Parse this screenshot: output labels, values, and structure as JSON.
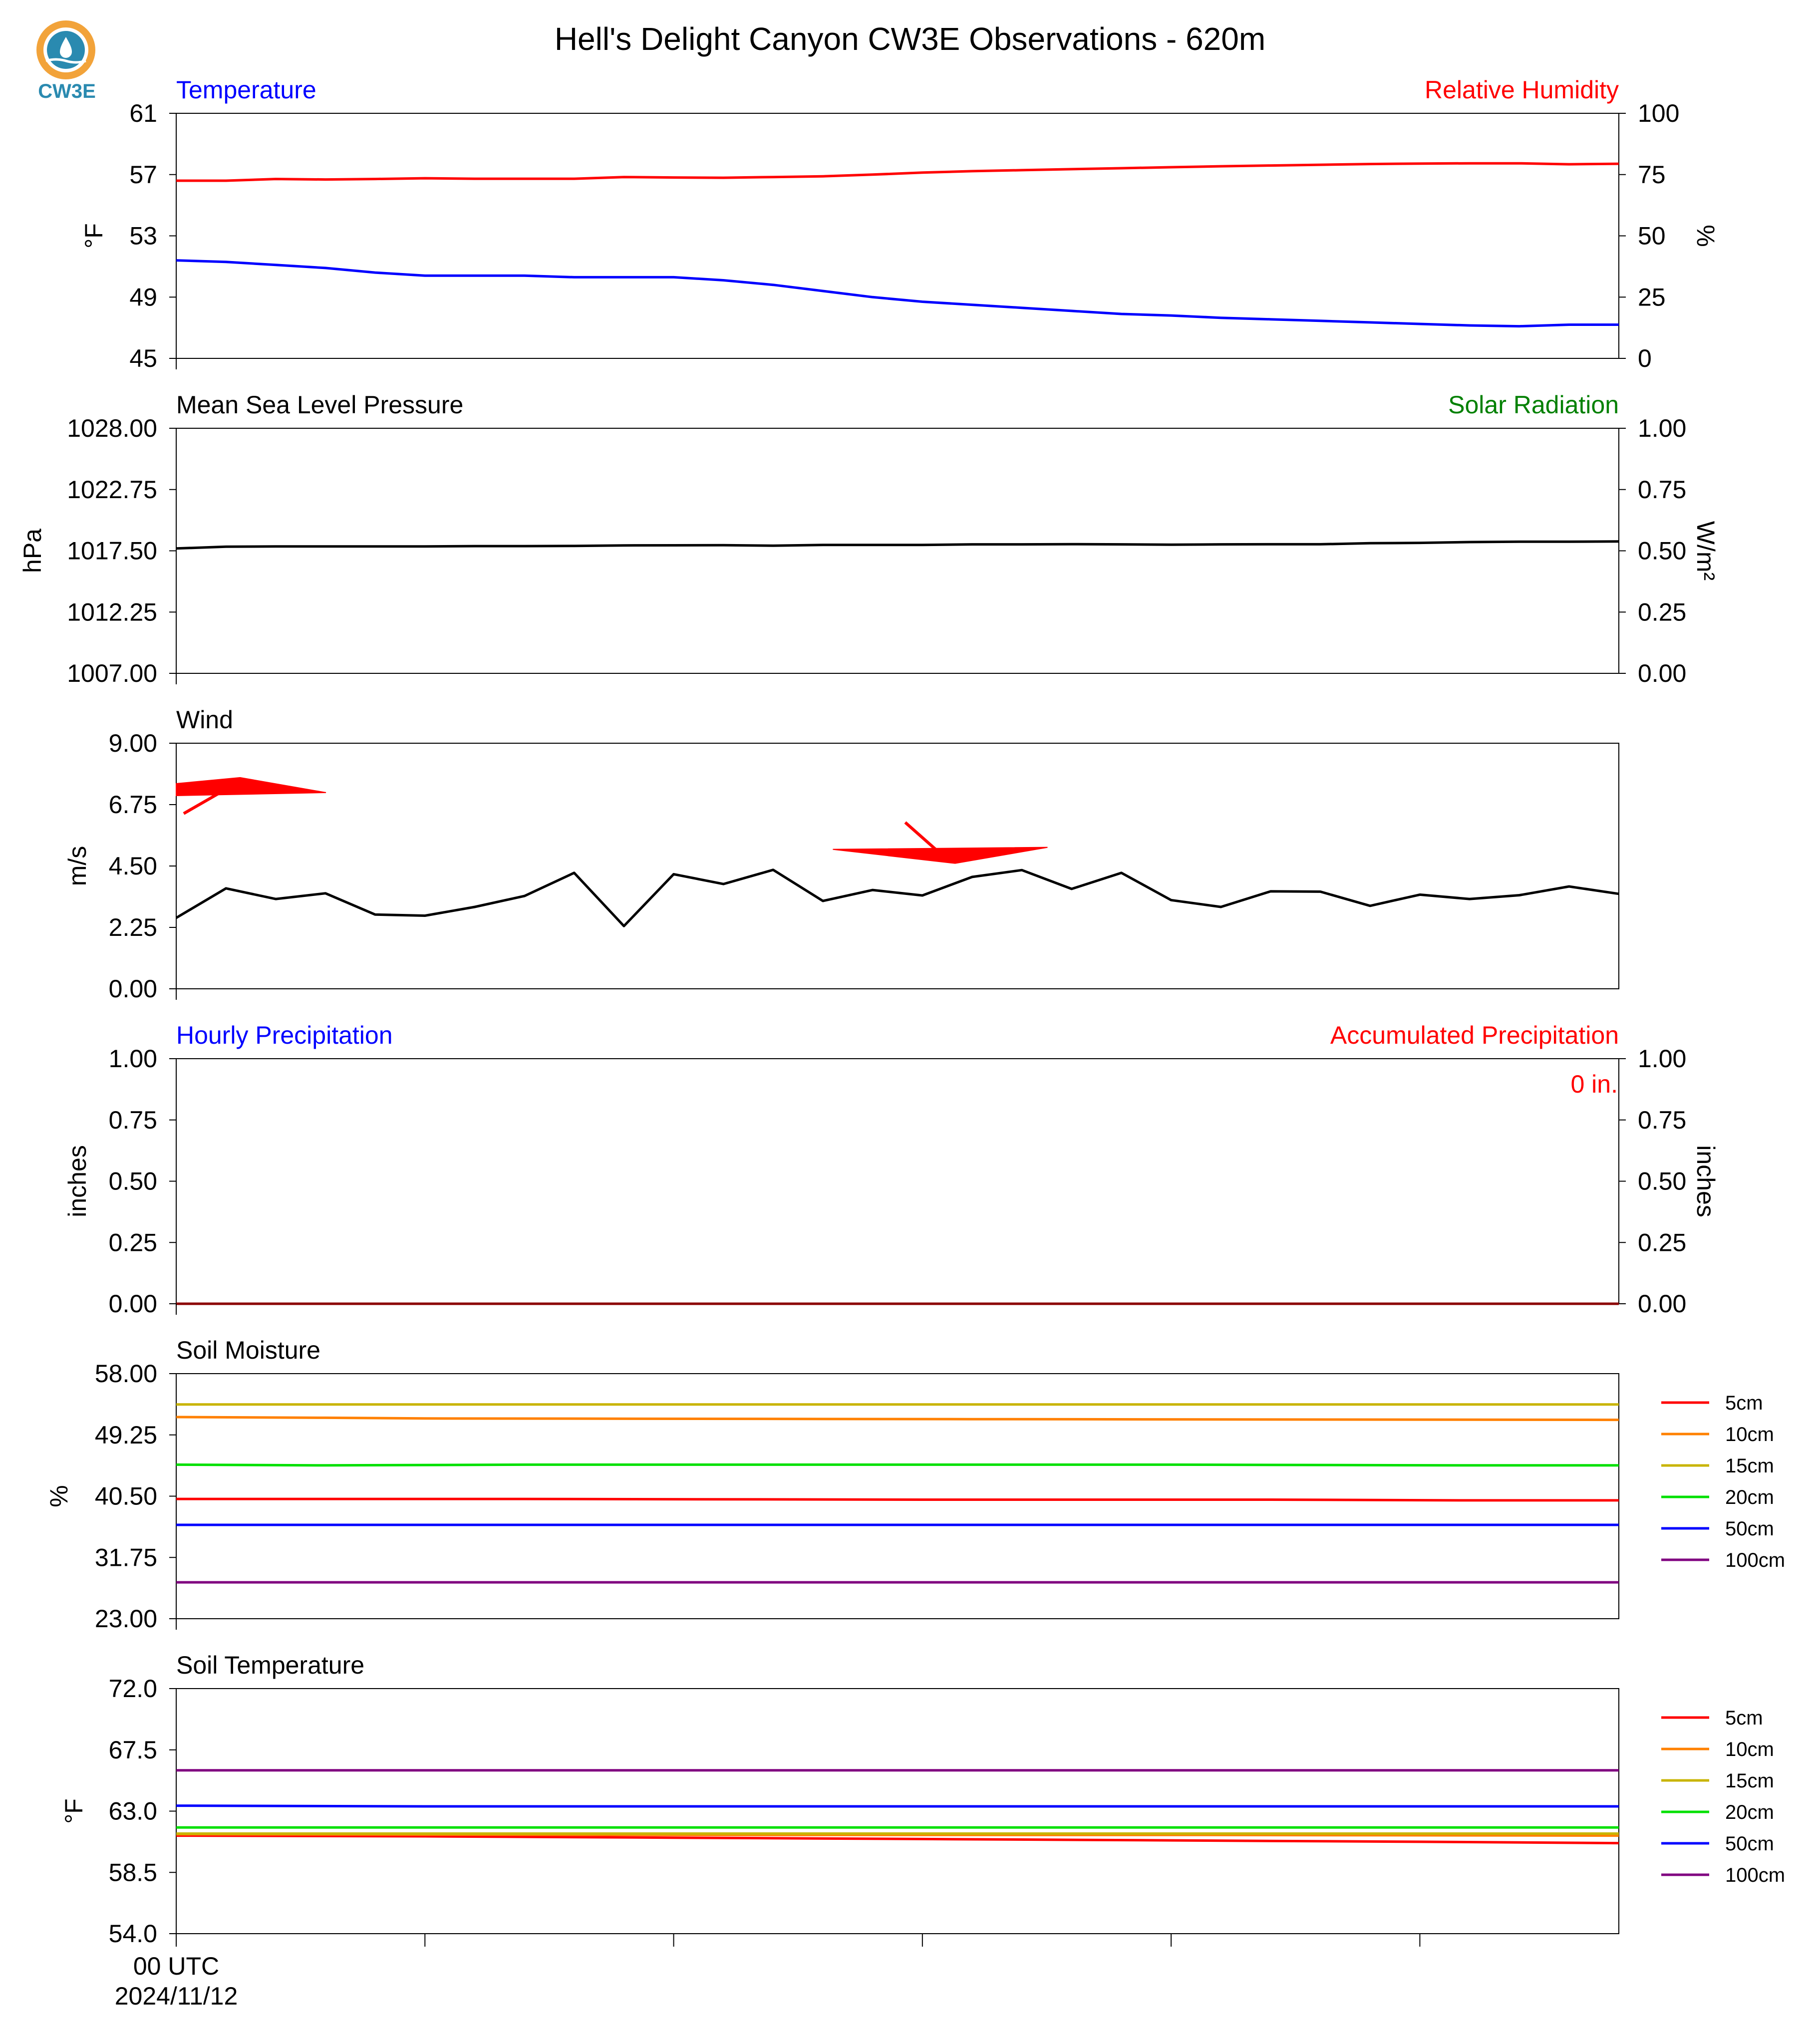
{
  "title": "Hell's Delight Canyon CW3E Observations - 620m",
  "logo": {
    "text": "CW3E",
    "icon": "cw3e-water-drop-icon",
    "color_text": "#2a8ab0",
    "color_ring": "#f2a33a"
  },
  "colors": {
    "blue": "#0000ff",
    "red": "#ff0000",
    "green": "#008000",
    "black": "#000000"
  },
  "x_axis": {
    "first_tick_label": "00 UTC",
    "first_tick_date": "2024/11/12",
    "ticks_hours": [
      0,
      5,
      10,
      15,
      20,
      25
    ],
    "range_hours": [
      0,
      29
    ]
  },
  "chart_data": [
    {
      "type": "line",
      "title_left": "Temperature",
      "title_right": "Relative Humidity",
      "ylabel_left": "°F",
      "ylabel_right": "%",
      "ylim_left": [
        45,
        61
      ],
      "yticks_left": [
        "45",
        "49",
        "53",
        "57",
        "61"
      ],
      "ylim_right": [
        0,
        100
      ],
      "yticks_right": [
        "0",
        "25",
        "50",
        "75",
        "100"
      ],
      "series": [
        {
          "axis": "right",
          "color": "#ff0000",
          "x": [
            0,
            1,
            2,
            3,
            4,
            5,
            6,
            7,
            8,
            9,
            10,
            11,
            12,
            13,
            14,
            15,
            16,
            17,
            18,
            19,
            20,
            21,
            22,
            23,
            24,
            25,
            26,
            27,
            28,
            29
          ],
          "values": [
            72.5,
            72.5,
            73.2,
            73,
            73.2,
            73.5,
            73.3,
            73.3,
            73.3,
            74,
            73.8,
            73.7,
            74,
            74.3,
            75,
            75.8,
            76.4,
            76.8,
            77.2,
            77.6,
            78,
            78.4,
            78.7,
            79,
            79.3,
            79.5,
            79.6,
            79.6,
            79.2,
            79.4
          ]
        },
        {
          "axis": "left",
          "color": "#0000ff",
          "x": [
            0,
            1,
            2,
            3,
            4,
            5,
            6,
            7,
            8,
            9,
            10,
            11,
            12,
            13,
            14,
            15,
            16,
            17,
            18,
            19,
            20,
            21,
            22,
            23,
            24,
            25,
            26,
            27,
            28,
            29
          ],
          "values": [
            51.4,
            51.3,
            51.1,
            50.9,
            50.6,
            50.4,
            50.4,
            50.4,
            50.3,
            50.3,
            50.3,
            50.1,
            49.8,
            49.4,
            49,
            48.7,
            48.5,
            48.3,
            48.1,
            47.9,
            47.8,
            47.65,
            47.55,
            47.45,
            47.35,
            47.25,
            47.15,
            47.1,
            47.2,
            47.2
          ]
        }
      ]
    },
    {
      "type": "line",
      "title_left": "Mean Sea Level Pressure",
      "title_right": "Solar Radiation",
      "ylabel_left": "hPa",
      "ylabel_right": "W/m²",
      "ylim_left": [
        1007,
        1028
      ],
      "yticks_left": [
        "1007.00",
        "1012.25",
        "1017.50",
        "1022.75",
        "1028.00"
      ],
      "ylim_right": [
        0,
        1
      ],
      "yticks_right": [
        "0.00",
        "0.25",
        "0.50",
        "0.75",
        "1.00"
      ],
      "series": [
        {
          "axis": "left",
          "color": "#000000",
          "x": [
            0,
            1,
            2,
            3,
            4,
            5,
            6,
            7,
            8,
            9,
            10,
            11,
            12,
            13,
            14,
            15,
            16,
            17,
            18,
            19,
            20,
            21,
            22,
            23,
            24,
            25,
            26,
            27,
            28,
            29
          ],
          "values": [
            1017.7,
            1017.85,
            1017.87,
            1017.87,
            1017.87,
            1017.87,
            1017.9,
            1017.9,
            1017.92,
            1017.96,
            1017.97,
            1017.98,
            1017.94,
            1018.0,
            1018.0,
            1018.0,
            1018.05,
            1018.05,
            1018.07,
            1018.05,
            1018.02,
            1018.05,
            1018.06,
            1018.06,
            1018.15,
            1018.18,
            1018.25,
            1018.28,
            1018.28,
            1018.3
          ]
        }
      ]
    },
    {
      "type": "line",
      "title_left": "Wind",
      "ylabel_left": "m/s",
      "ylim_left": [
        0,
        9
      ],
      "yticks_left": [
        "0.00",
        "2.25",
        "4.50",
        "6.75",
        "9.00"
      ],
      "series": [
        {
          "axis": "left",
          "color": "#000000",
          "x": [
            0,
            1,
            2,
            3,
            4,
            5,
            6,
            7,
            8,
            9,
            10,
            11,
            12,
            13,
            14,
            15,
            16,
            17,
            18,
            19,
            20,
            21,
            22,
            23,
            24,
            25,
            26,
            27,
            28,
            29
          ],
          "values": [
            2.6,
            3.68,
            3.29,
            3.5,
            2.72,
            2.68,
            3.0,
            3.4,
            4.25,
            2.3,
            4.2,
            3.84,
            4.36,
            3.22,
            3.62,
            3.42,
            4.1,
            4.35,
            3.66,
            4.25,
            3.25,
            3.0,
            3.57,
            3.56,
            3.04,
            3.45,
            3.29,
            3.43,
            3.75,
            3.48
          ]
        }
      ],
      "wind_barbs": [
        {
          "hour": 0,
          "speed": 7.3,
          "direction_from": "west",
          "color": "#ff0000"
        },
        {
          "hour": 13.2,
          "speed": 5.0,
          "direction_from": "east",
          "color": "#ff0000"
        }
      ]
    },
    {
      "type": "line",
      "title_left": "Hourly Precipitation",
      "title_right": "Accumulated Precipitation",
      "annotation": "0 in.",
      "ylabel_left": "inches",
      "ylabel_right": "inches",
      "ylim_left": [
        0,
        1
      ],
      "yticks_left": [
        "0.00",
        "0.25",
        "0.50",
        "0.75",
        "1.00"
      ],
      "ylim_right": [
        0,
        1
      ],
      "yticks_right": [
        "0.00",
        "0.25",
        "0.50",
        "0.75",
        "1.00"
      ],
      "series": [
        {
          "axis": "left",
          "color": "#0000ff",
          "x": [
            0,
            29
          ],
          "values": [
            0,
            0
          ]
        },
        {
          "axis": "right",
          "color": "#8b0000",
          "x": [
            0,
            29
          ],
          "values": [
            0,
            0
          ]
        }
      ]
    },
    {
      "type": "line",
      "title_left": "Soil Moisture",
      "ylabel_left": "%",
      "ylim_left": [
        23,
        58
      ],
      "yticks_left": [
        "23.00",
        "31.75",
        "40.50",
        "49.25",
        "58.00"
      ],
      "legend": true,
      "series": [
        {
          "name": "5cm",
          "color": "#ff0000",
          "x": [
            0,
            7,
            15,
            22,
            26,
            29
          ],
          "values": [
            40.1,
            40.1,
            40.0,
            40.0,
            39.9,
            39.9
          ]
        },
        {
          "name": "10cm",
          "color": "#ff8000",
          "x": [
            0,
            3,
            5,
            16,
            29
          ],
          "values": [
            51.8,
            51.7,
            51.6,
            51.5,
            51.4
          ]
        },
        {
          "name": "15cm",
          "color": "#c8b400",
          "x": [
            0,
            29
          ],
          "values": [
            53.6,
            53.6
          ]
        },
        {
          "name": "20cm",
          "color": "#00e000",
          "x": [
            0,
            3,
            7,
            20,
            26,
            29
          ],
          "values": [
            45.0,
            44.9,
            45.0,
            45.0,
            44.9,
            44.9
          ]
        },
        {
          "name": "50cm",
          "color": "#0000ff",
          "x": [
            0,
            29
          ],
          "values": [
            36.4,
            36.4
          ]
        },
        {
          "name": "100cm",
          "color": "#800080",
          "x": [
            0,
            29
          ],
          "values": [
            28.2,
            28.2
          ]
        }
      ]
    },
    {
      "type": "line",
      "title_left": "Soil Temperature",
      "ylabel_left": "°F",
      "ylim_left": [
        54,
        72
      ],
      "yticks_left": [
        "54.0",
        "58.5",
        "63.0",
        "67.5",
        "72.0"
      ],
      "legend": true,
      "series": [
        {
          "name": "5cm",
          "color": "#ff0000",
          "x": [
            0,
            5,
            10,
            15,
            20,
            25,
            29
          ],
          "values": [
            61.2,
            61.15,
            61.05,
            60.95,
            60.85,
            60.75,
            60.65
          ]
        },
        {
          "name": "10cm",
          "color": "#ff8000",
          "x": [
            0,
            10,
            20,
            29
          ],
          "values": [
            61.3,
            61.25,
            61.25,
            61.2
          ]
        },
        {
          "name": "15cm",
          "color": "#c8b400",
          "x": [
            0,
            29
          ],
          "values": [
            61.35,
            61.35
          ]
        },
        {
          "name": "20cm",
          "color": "#00e000",
          "x": [
            0,
            29
          ],
          "values": [
            61.8,
            61.8
          ]
        },
        {
          "name": "50cm",
          "color": "#0000ff",
          "x": [
            0,
            5,
            29
          ],
          "values": [
            63.4,
            63.35,
            63.35
          ]
        },
        {
          "name": "100cm",
          "color": "#800080",
          "x": [
            0,
            29
          ],
          "values": [
            66.0,
            66.0
          ]
        }
      ]
    }
  ]
}
